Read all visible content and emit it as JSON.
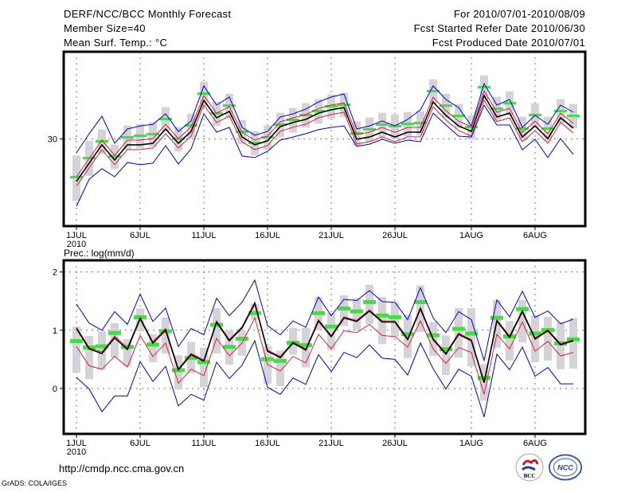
{
  "header": {
    "title": "DERF/NCC/BCC Monthly Forecast",
    "member_size": "Member Size=40",
    "variable": "Mean Surf. Temp.: °C",
    "period": "For 2010/07/01-2010/08/09",
    "started": "Fcst Started Refer Date 2010/06/30",
    "produced": "Fcst Produced Date 2010/07/01"
  },
  "footer": {
    "url": "http://cmdp.ncc.cma.gov.cn",
    "credit": "GrADS: COLA/IGES",
    "logos": [
      "BCC",
      "NCC"
    ]
  },
  "colors": {
    "blue": "#0000dd",
    "red": "#e0203c",
    "black": "#000000",
    "green": "#40e040",
    "gray": "#d3d3d8"
  },
  "chart_data": [
    {
      "type": "line",
      "title": "Mean Surf. Temp.: °C",
      "xlabel": "",
      "ylabel": "",
      "ylim": [
        25,
        35
      ],
      "yticks": [
        30
      ],
      "grid": true,
      "x_tick_labels": [
        {
          "day": 1,
          "label": "1JUL",
          "sub": "2010"
        },
        {
          "day": 6,
          "label": "6JUL"
        },
        {
          "day": 11,
          "label": "11JUL"
        },
        {
          "day": 16,
          "label": "16JUL"
        },
        {
          "day": 21,
          "label": "21JUL"
        },
        {
          "day": 26,
          "label": "26JUL"
        },
        {
          "day": 32,
          "label": "1AUG"
        },
        {
          "day": 37,
          "label": "6AUG"
        }
      ],
      "days": 40,
      "series": [
        {
          "name": "blue-upper",
          "color": "blue",
          "values": [
            29.2,
            30.3,
            31.3,
            29.75,
            30.57,
            30.75,
            30.84,
            31.44,
            30.43,
            31.03,
            33.04,
            31.94,
            32.4,
            30.66,
            30.21,
            30.43,
            31.26,
            31.44,
            31.71,
            32.12,
            32.4,
            32.58,
            30.57,
            30.75,
            31.03,
            30.75,
            31.12,
            31.67,
            33.04,
            32.26,
            31.8,
            30.75,
            33.17,
            31.94,
            32.26,
            30.66,
            31.35,
            30.84,
            31.94,
            31.53
          ]
        },
        {
          "name": "red-upper",
          "color": "red",
          "values": [
            27.83,
            28.88,
            29.93,
            29.06,
            29.93,
            29.93,
            30.02,
            30.84,
            30.02,
            30.7,
            32.48,
            31.48,
            31.85,
            30.38,
            29.93,
            30.16,
            30.98,
            31.21,
            31.39,
            31.75,
            31.94,
            32.07,
            30.25,
            30.38,
            30.66,
            30.38,
            30.66,
            30.66,
            32.39,
            31.62,
            31.02,
            30.7,
            32.76,
            31.53,
            31.75,
            30.38,
            31.02,
            30.29,
            31.48,
            30.89
          ]
        },
        {
          "name": "ensemble-mean",
          "color": "black",
          "values": [
            27.56,
            28.61,
            29.66,
            28.79,
            29.66,
            29.66,
            29.75,
            30.57,
            29.75,
            30.43,
            32.21,
            31.21,
            31.58,
            30.11,
            29.66,
            29.89,
            30.71,
            30.94,
            31.12,
            31.48,
            31.67,
            31.8,
            29.98,
            30.11,
            30.39,
            30.11,
            30.39,
            30.39,
            32.12,
            31.35,
            30.75,
            30.43,
            32.49,
            31.26,
            31.48,
            30.11,
            30.75,
            30.02,
            31.21,
            30.62
          ]
        },
        {
          "name": "red-lower",
          "color": "red",
          "values": [
            27.29,
            28.34,
            29.39,
            28.52,
            29.39,
            29.39,
            29.48,
            30.3,
            29.48,
            30.16,
            31.94,
            30.94,
            31.31,
            29.84,
            29.39,
            29.62,
            30.44,
            30.67,
            30.85,
            31.21,
            31.4,
            31.53,
            29.71,
            29.84,
            30.12,
            29.84,
            30.12,
            30.12,
            31.85,
            31.08,
            30.48,
            30.16,
            32.22,
            30.99,
            31.21,
            29.84,
            30.48,
            29.75,
            30.94,
            30.35
          ]
        },
        {
          "name": "blue-lower",
          "color": "blue",
          "values": [
            26.14,
            27.69,
            28.29,
            27.83,
            28.65,
            28.52,
            28.61,
            29.61,
            28.56,
            29.43,
            31.44,
            30.39,
            30.66,
            29.02,
            28.93,
            29.29,
            29.93,
            30.11,
            30.3,
            30.53,
            30.66,
            30.75,
            29.57,
            29.7,
            29.98,
            29.75,
            29.93,
            29.84,
            31.48,
            30.8,
            30.16,
            30.11,
            31.94,
            30.8,
            30.8,
            29.38,
            29.98,
            28.93,
            30.02,
            29.11
          ]
        }
      ],
      "markers": {
        "name": "observed",
        "color": "green",
        "values": [
          27.79,
          28.88,
          29.84,
          28.97,
          30.07,
          30.16,
          30.25,
          31.12,
          29.98,
          30.75,
          32.58,
          31.44,
          31.89,
          30.39,
          29.75,
          30.07,
          30.8,
          31.07,
          31.35,
          31.58,
          31.85,
          31.94,
          30.3,
          30.53,
          30.8,
          30.71,
          30.84,
          30.89,
          32.72,
          31.89,
          31.3,
          30.66,
          32.95,
          31.71,
          32.03,
          30.57,
          31.35,
          30.57,
          31.58,
          31.3
        ]
      },
      "boxes": {
        "name": "spread",
        "color": "gray",
        "low": [
          26.45,
          27.88,
          29.14,
          28.27,
          29.37,
          29.46,
          29.55,
          30.42,
          29.28,
          30.05,
          31.88,
          30.74,
          31.19,
          29.69,
          29.05,
          29.37,
          30.1,
          30.37,
          30.65,
          30.88,
          31.15,
          31.24,
          29.6,
          29.83,
          30.1,
          30.01,
          30.14,
          30.19,
          32.02,
          31.19,
          30.6,
          29.96,
          32.25,
          31.01,
          31.33,
          29.87,
          30.65,
          29.87,
          30.88,
          30.6
        ],
        "high": [
          29.05,
          29.88,
          30.54,
          29.67,
          30.77,
          30.86,
          30.95,
          31.82,
          30.68,
          31.45,
          33.28,
          32.14,
          32.59,
          31.09,
          30.45,
          30.77,
          31.5,
          31.77,
          32.05,
          32.28,
          32.55,
          32.64,
          31.0,
          31.23,
          31.5,
          31.41,
          31.54,
          31.59,
          33.42,
          32.59,
          32.0,
          31.36,
          33.65,
          32.41,
          32.73,
          31.27,
          32.05,
          31.27,
          32.28,
          32.0
        ]
      }
    },
    {
      "type": "line",
      "title": "Prec.: log(mm/d)",
      "xlabel": "",
      "ylabel": "",
      "ylim": [
        -0.78,
        2.2
      ],
      "yticks": [
        0,
        1,
        2
      ],
      "grid": true,
      "x_tick_labels": [
        {
          "day": 1,
          "label": "1JUL",
          "sub": "2010"
        },
        {
          "day": 6,
          "label": "6JUL"
        },
        {
          "day": 11,
          "label": "11JUL"
        },
        {
          "day": 16,
          "label": "16JUL"
        },
        {
          "day": 21,
          "label": "21JUL"
        },
        {
          "day": 26,
          "label": "26JUL"
        },
        {
          "day": 32,
          "label": "1AUG"
        },
        {
          "day": 37,
          "label": "6AUG"
        }
      ],
      "days": 40,
      "series": [
        {
          "name": "blue-upper",
          "color": "blue",
          "values": [
            1.45,
            1.12,
            1.0,
            1.32,
            1.1,
            1.62,
            1.15,
            1.38,
            0.72,
            1.03,
            0.92,
            1.55,
            1.25,
            1.48,
            1.86,
            1.08,
            0.92,
            1.16,
            1.05,
            1.57,
            1.25,
            1.53,
            1.51,
            1.68,
            1.49,
            1.48,
            1.18,
            1.73,
            1.21,
            0.96,
            1.32,
            1.18,
            0.48,
            1.52,
            1.23,
            1.67,
            1.22,
            1.33,
            1.11,
            1.19
          ]
        },
        {
          "name": "red-upper",
          "color": "red",
          "values": [
            1.05,
            0.7,
            0.63,
            0.9,
            0.7,
            1.22,
            0.8,
            1.03,
            0.34,
            0.6,
            0.49,
            1.16,
            0.84,
            1.06,
            1.48,
            0.66,
            0.55,
            0.8,
            0.68,
            1.18,
            0.91,
            1.23,
            1.17,
            1.35,
            1.16,
            1.16,
            0.86,
            1.39,
            0.86,
            0.61,
            0.95,
            0.84,
            0.12,
            1.18,
            0.9,
            1.34,
            0.87,
            1.01,
            0.77,
            0.84
          ]
        },
        {
          "name": "ensemble-mean",
          "color": "black",
          "values": [
            1.03,
            0.68,
            0.6,
            0.87,
            0.67,
            1.2,
            0.78,
            1.0,
            0.32,
            0.58,
            0.47,
            1.14,
            0.82,
            1.04,
            1.46,
            0.64,
            0.53,
            0.78,
            0.66,
            1.16,
            0.89,
            1.21,
            1.15,
            1.33,
            1.14,
            1.14,
            0.84,
            1.37,
            0.84,
            0.59,
            0.93,
            0.82,
            0.1,
            1.16,
            0.88,
            1.32,
            0.85,
            0.99,
            0.75,
            0.82
          ]
        },
        {
          "name": "red-lower",
          "color": "red",
          "values": [
            0.72,
            0.39,
            0.33,
            0.55,
            0.37,
            0.91,
            0.55,
            0.78,
            0.09,
            0.33,
            0.22,
            0.86,
            0.56,
            0.78,
            1.21,
            0.41,
            0.3,
            0.55,
            0.44,
            0.93,
            0.68,
            0.99,
            0.96,
            1.1,
            0.91,
            0.89,
            0.71,
            1.16,
            0.68,
            0.43,
            0.7,
            0.62,
            -0.1,
            0.93,
            0.68,
            1.14,
            0.64,
            0.81,
            0.56,
            0.62
          ]
        },
        {
          "name": "blue-lower",
          "color": "blue",
          "values": [
            0.19,
            -0.01,
            -0.4,
            -0.13,
            -0.13,
            0.46,
            0.12,
            0.38,
            -0.3,
            -0.1,
            -0.2,
            0.45,
            0.17,
            0.4,
            0.82,
            0.02,
            -0.1,
            0.18,
            0.07,
            0.58,
            0.29,
            0.62,
            0.53,
            0.75,
            0.52,
            0.5,
            0.23,
            0.78,
            0.34,
            -0.01,
            0.33,
            0.21,
            -0.49,
            0.59,
            0.32,
            0.71,
            0.21,
            0.36,
            0.08,
            0.08
          ]
        }
      ],
      "markers": {
        "name": "observed",
        "color": "green",
        "values": [
          0.82,
          0.71,
          0.73,
          0.96,
          0.72,
          1.23,
          0.76,
          0.99,
          0.32,
          0.53,
          0.46,
          1.1,
          0.72,
          0.86,
          1.3,
          0.51,
          0.48,
          0.79,
          0.75,
          1.3,
          1.07,
          1.38,
          1.33,
          1.49,
          1.26,
          1.23,
          0.94,
          1.49,
          0.92,
          0.68,
          1.03,
          0.95,
          0.19,
          1.22,
          0.9,
          1.37,
          0.95,
          1.01,
          0.78,
          0.85
        ]
      },
      "boxes": {
        "name": "spread",
        "color": "gray",
        "low": [
          0.27,
          0.16,
          0.32,
          0.53,
          0.38,
          0.98,
          0.45,
          0.6,
          -0.02,
          0.26,
          0.02,
          0.6,
          0.41,
          0.56,
          1.18,
          0.08,
          0.04,
          0.58,
          0.36,
          1.0,
          0.66,
          1.07,
          1.0,
          1.11,
          0.76,
          0.89,
          0.52,
          0.97,
          0.56,
          0.23,
          0.53,
          0.38,
          -0.21,
          0.7,
          0.48,
          0.79,
          0.45,
          0.48,
          0.33,
          0.34
        ],
        "high": [
          1.06,
          0.9,
          0.98,
          1.12,
          0.85,
          1.37,
          0.93,
          1.22,
          0.57,
          0.8,
          0.7,
          1.38,
          1.0,
          1.0,
          1.45,
          0.73,
          0.65,
          1.04,
          1.04,
          1.57,
          1.3,
          1.6,
          1.55,
          1.78,
          1.57,
          1.48,
          1.27,
          1.77,
          1.14,
          0.91,
          1.38,
          1.38,
          0.42,
          1.52,
          1.16,
          1.52,
          1.26,
          1.23,
          1.14,
          1.21
        ]
      }
    }
  ]
}
